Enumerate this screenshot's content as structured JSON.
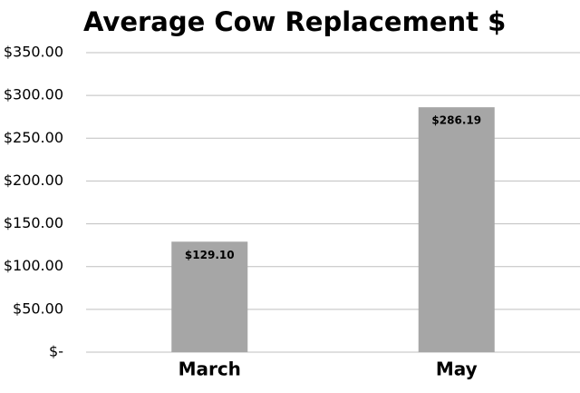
{
  "chart_data": {
    "type": "bar",
    "title": "Average Cow Replacement $",
    "categories": [
      "March",
      "May"
    ],
    "values": [
      129.1,
      286.19
    ],
    "value_labels": [
      "$129.10",
      "$286.19"
    ],
    "color": "#a6a6a6",
    "ylim": [
      0,
      350
    ],
    "yticks": [
      {
        "value": 0,
        "label": "$-"
      },
      {
        "value": 50,
        "label": "$50.00"
      },
      {
        "value": 100,
        "label": "$100.00"
      },
      {
        "value": 150,
        "label": "$150.00"
      },
      {
        "value": 200,
        "label": "$200.00"
      },
      {
        "value": 250,
        "label": "$250.00"
      },
      {
        "value": 300,
        "label": "$300.00"
      },
      {
        "value": 350,
        "label": "$350.00"
      }
    ],
    "grid": true
  }
}
